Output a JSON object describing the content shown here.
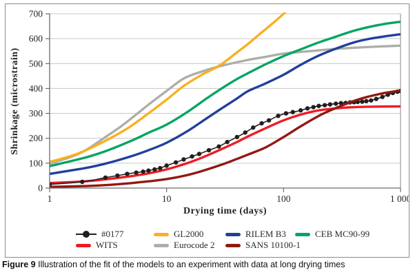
{
  "figure": {
    "caption_label": "Figure 9",
    "caption_text": " Illustration of the fit of the models to an experiment with data at long drying times"
  },
  "chart_data": {
    "type": "line",
    "title": "",
    "xlabel": "Drying time (days)",
    "ylabel": "Shrinkage (microstrain)",
    "x_scale": "log",
    "xlim": [
      1,
      1000
    ],
    "ylim": [
      0,
      700
    ],
    "x_tick_values": [
      1,
      10,
      100,
      1000
    ],
    "x_tick_labels": [
      "1",
      "10",
      "100",
      "1 000"
    ],
    "y_tick_values": [
      0,
      100,
      200,
      300,
      400,
      500,
      600,
      700
    ],
    "y_tick_labels": [
      "0",
      "100",
      "200",
      "300",
      "400",
      "500",
      "600",
      "700"
    ],
    "grid": "horizontal",
    "grid_color": "#c6c6c6",
    "axis_color": "#6b6b6b",
    "right_border_color": "#9a9a9a",
    "legend_position": "bottom",
    "legend_rows": [
      [
        "#0177",
        "GL2000",
        "RILEM B3",
        "CEB MC90-99"
      ],
      [
        "WITS",
        "Eurocode 2",
        "SANS 10100-1"
      ]
    ],
    "series": [
      {
        "name": "#0177",
        "color": "#231f20",
        "markers": true,
        "line_width": 1.6,
        "points": [
          [
            1,
            15
          ],
          [
            1.9,
            25
          ],
          [
            3,
            42
          ],
          [
            3.8,
            50
          ],
          [
            4.6,
            57
          ],
          [
            5.5,
            62
          ],
          [
            6.3,
            66
          ],
          [
            7,
            70
          ],
          [
            7.9,
            75
          ],
          [
            8.8,
            80
          ],
          [
            10,
            90
          ],
          [
            12,
            103
          ],
          [
            14,
            115
          ],
          [
            16.5,
            127
          ],
          [
            19,
            137
          ],
          [
            23,
            152
          ],
          [
            28,
            167
          ],
          [
            33,
            185
          ],
          [
            40,
            205
          ],
          [
            47,
            223
          ],
          [
            55,
            243
          ],
          [
            65,
            260
          ],
          [
            75,
            272
          ],
          [
            90,
            290
          ],
          [
            105,
            300
          ],
          [
            120,
            305
          ],
          [
            140,
            312
          ],
          [
            160,
            320
          ],
          [
            180,
            325
          ],
          [
            200,
            330
          ],
          [
            225,
            333
          ],
          [
            250,
            336
          ],
          [
            280,
            339
          ],
          [
            310,
            341
          ],
          [
            340,
            342
          ],
          [
            370,
            344
          ],
          [
            400,
            345
          ],
          [
            430,
            346
          ],
          [
            470,
            347
          ],
          [
            510,
            349
          ],
          [
            560,
            352
          ],
          [
            620,
            358
          ],
          [
            700,
            366
          ],
          [
            780,
            375
          ],
          [
            860,
            382
          ],
          [
            940,
            387
          ],
          [
            1000,
            390
          ]
        ]
      },
      {
        "name": "GL2000",
        "color": "#f9b01e",
        "markers": false,
        "line_width": 3.4,
        "points": [
          [
            1,
            105
          ],
          [
            1.5,
            128
          ],
          [
            2,
            150
          ],
          [
            3,
            190
          ],
          [
            4,
            222
          ],
          [
            5,
            250
          ],
          [
            7,
            300
          ],
          [
            10,
            355
          ],
          [
            14,
            410
          ],
          [
            20,
            455
          ],
          [
            25,
            478
          ],
          [
            30,
            500
          ],
          [
            40,
            545
          ],
          [
            50,
            580
          ],
          [
            65,
            625
          ],
          [
            80,
            660
          ],
          [
            100,
            700
          ],
          [
            112,
            725
          ]
        ]
      },
      {
        "name": "RILEM B3",
        "color": "#21409a",
        "markers": false,
        "line_width": 3.4,
        "points": [
          [
            1,
            57
          ],
          [
            2,
            80
          ],
          [
            3,
            98
          ],
          [
            5,
            128
          ],
          [
            7,
            152
          ],
          [
            10,
            182
          ],
          [
            15,
            228
          ],
          [
            22,
            280
          ],
          [
            30,
            322
          ],
          [
            40,
            360
          ],
          [
            50,
            390
          ],
          [
            70,
            420
          ],
          [
            100,
            455
          ],
          [
            140,
            495
          ],
          [
            200,
            532
          ],
          [
            280,
            560
          ],
          [
            400,
            585
          ],
          [
            550,
            600
          ],
          [
            750,
            610
          ],
          [
            1000,
            618
          ]
        ]
      },
      {
        "name": "CEB MC90-99",
        "color": "#00a562",
        "markers": false,
        "line_width": 3.4,
        "points": [
          [
            1,
            88
          ],
          [
            2,
            122
          ],
          [
            3,
            148
          ],
          [
            5,
            190
          ],
          [
            7,
            222
          ],
          [
            10,
            255
          ],
          [
            15,
            305
          ],
          [
            22,
            360
          ],
          [
            30,
            402
          ],
          [
            40,
            438
          ],
          [
            50,
            462
          ],
          [
            70,
            497
          ],
          [
            100,
            530
          ],
          [
            140,
            557
          ],
          [
            200,
            585
          ],
          [
            280,
            608
          ],
          [
            400,
            632
          ],
          [
            550,
            648
          ],
          [
            750,
            660
          ],
          [
            1000,
            668
          ]
        ]
      },
      {
        "name": "WITS",
        "color": "#ed1c24",
        "markers": false,
        "line_width": 3.4,
        "points": [
          [
            1,
            20
          ],
          [
            2,
            27
          ],
          [
            3,
            35
          ],
          [
            5,
            48
          ],
          [
            7,
            59
          ],
          [
            10,
            75
          ],
          [
            15,
            100
          ],
          [
            20,
            122
          ],
          [
            30,
            158
          ],
          [
            40,
            185
          ],
          [
            50,
            208
          ],
          [
            70,
            240
          ],
          [
            100,
            272
          ],
          [
            140,
            295
          ],
          [
            200,
            312
          ],
          [
            280,
            320
          ],
          [
            400,
            325
          ],
          [
            600,
            327
          ],
          [
            1000,
            328
          ]
        ]
      },
      {
        "name": "Eurocode 2",
        "color": "#aeaea8",
        "markers": false,
        "line_width": 3.4,
        "points": [
          [
            1,
            98
          ],
          [
            1.5,
            124
          ],
          [
            2,
            150
          ],
          [
            3,
            205
          ],
          [
            4,
            245
          ],
          [
            5,
            280
          ],
          [
            7,
            335
          ],
          [
            10,
            390
          ],
          [
            14,
            440
          ],
          [
            20,
            468
          ],
          [
            30,
            492
          ],
          [
            50,
            515
          ],
          [
            70,
            527
          ],
          [
            100,
            540
          ],
          [
            150,
            548
          ],
          [
            200,
            553
          ],
          [
            300,
            560
          ],
          [
            500,
            566
          ],
          [
            1000,
            572
          ]
        ]
      },
      {
        "name": "SANS 10100-1",
        "color": "#8f1913",
        "markers": false,
        "line_width": 3.4,
        "points": [
          [
            1,
            5
          ],
          [
            2,
            8
          ],
          [
            3,
            12
          ],
          [
            5,
            20
          ],
          [
            7,
            27
          ],
          [
            10,
            36
          ],
          [
            15,
            52
          ],
          [
            20,
            68
          ],
          [
            30,
            95
          ],
          [
            40,
            117
          ],
          [
            50,
            135
          ],
          [
            70,
            163
          ],
          [
            100,
            205
          ],
          [
            140,
            248
          ],
          [
            200,
            290
          ],
          [
            260,
            315
          ],
          [
            330,
            335
          ],
          [
            400,
            350
          ],
          [
            500,
            364
          ],
          [
            650,
            377
          ],
          [
            800,
            385
          ],
          [
            1000,
            392
          ]
        ]
      }
    ],
    "draw_order": [
      5,
      1,
      3,
      2,
      4,
      0,
      6
    ]
  }
}
